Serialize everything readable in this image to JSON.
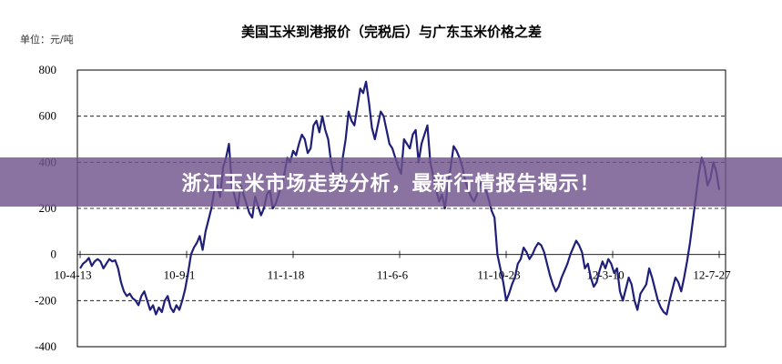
{
  "chart_data": {
    "type": "line",
    "title": "美国玉米到港报价（完税后）与广东玉米价格之差",
    "unit_label": "单位：元/吨",
    "ylim": [
      -400,
      800
    ],
    "y_ticks": [
      "800",
      "600",
      "400",
      "200",
      "0",
      "-200",
      "-400"
    ],
    "x_tick_labels": [
      "10-4-13",
      "10-9-1",
      "11-1-18",
      "11-6-6",
      "11-10-23",
      "12-3-10",
      "12-7-27"
    ],
    "grid": "horizontal dashed",
    "line_color": "#1f1f7a",
    "series": [
      {
        "values": [
          -60,
          -40,
          -30,
          -15,
          -50,
          -30,
          -20,
          -30,
          -60,
          -40,
          -20,
          -30,
          -25,
          -60,
          -120,
          -160,
          -180,
          -170,
          -190,
          -200,
          -220,
          -180,
          -160,
          -200,
          -240,
          -220,
          -260,
          -230,
          -250,
          -200,
          -180,
          -230,
          -250,
          -220,
          -240,
          -200,
          -150,
          -80,
          0,
          30,
          50,
          80,
          20,
          100,
          150,
          200,
          280,
          300,
          250,
          380,
          420,
          480,
          300,
          250,
          200,
          300,
          260,
          220,
          180,
          160,
          250,
          210,
          170,
          200,
          260,
          280,
          200,
          220,
          260,
          300,
          350,
          420,
          400,
          450,
          430,
          480,
          520,
          500,
          440,
          460,
          560,
          580,
          530,
          600,
          540,
          500,
          400,
          350,
          330,
          280,
          420,
          500,
          620,
          580,
          560,
          640,
          720,
          700,
          750,
          660,
          550,
          500,
          560,
          620,
          600,
          540,
          480,
          460,
          420,
          380,
          350,
          500,
          480,
          460,
          520,
          540,
          400,
          480,
          520,
          560,
          400,
          340,
          280,
          230,
          260,
          200,
          300,
          380,
          470,
          450,
          420,
          380,
          320,
          280,
          250,
          230,
          260,
          300,
          330,
          280,
          240,
          190,
          160,
          0,
          -60,
          -120,
          -200,
          -170,
          -130,
          -100,
          -40,
          -20,
          30,
          10,
          -20,
          0,
          30,
          50,
          40,
          10,
          -40,
          -90,
          -130,
          -160,
          -140,
          -100,
          -70,
          -40,
          0,
          30,
          60,
          40,
          10,
          -60,
          -40,
          -100,
          -140,
          -120,
          -70,
          -30,
          -60,
          -20,
          -40,
          -80,
          -60,
          -160,
          -200,
          -150,
          -100,
          -130,
          -200,
          -240,
          -170,
          -150,
          -130,
          -60,
          -100,
          -150,
          -200,
          -230,
          -250,
          -260,
          -200,
          -150,
          -100,
          -120,
          -160,
          -100,
          -30,
          50,
          150,
          250,
          350,
          420,
          380,
          300,
          330,
          400,
          360,
          280
        ]
      }
    ]
  },
  "banner": {
    "text": "浙江玉米市场走势分析，最新行情报告揭示！"
  }
}
